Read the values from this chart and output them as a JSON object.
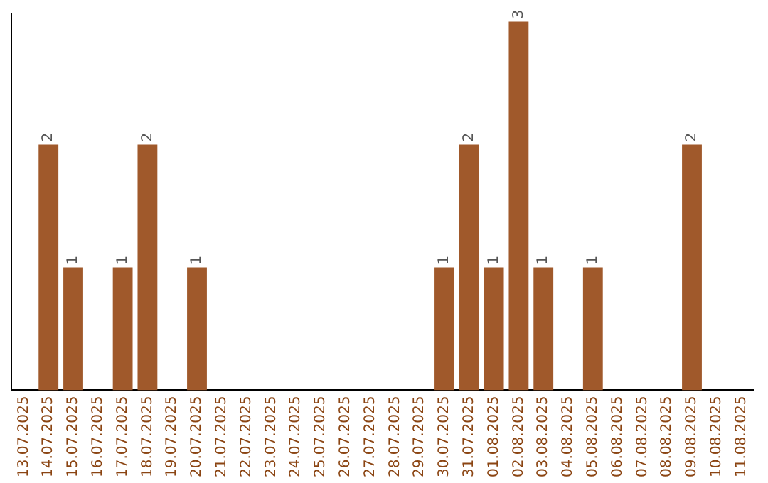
{
  "chart_data": {
    "type": "bar",
    "color": "#a0592b",
    "categories": [
      "13.07.2025",
      "14.07.2025",
      "15.07.2025",
      "16.07.2025",
      "17.07.2025",
      "18.07.2025",
      "19.07.2025",
      "20.07.2025",
      "21.07.2025",
      "22.07.2025",
      "23.07.2025",
      "24.07.2025",
      "25.07.2025",
      "26.07.2025",
      "27.07.2025",
      "28.07.2025",
      "29.07.2025",
      "30.07.2025",
      "31.07.2025",
      "01.08.2025",
      "02.08.2025",
      "03.08.2025",
      "04.08.2025",
      "05.08.2025",
      "06.08.2025",
      "07.08.2025",
      "08.08.2025",
      "09.08.2025",
      "10.08.2025",
      "11.08.2025"
    ],
    "values": [
      0,
      2,
      1,
      0,
      1,
      2,
      0,
      1,
      0,
      0,
      0,
      0,
      0,
      0,
      0,
      0,
      0,
      1,
      2,
      1,
      3,
      1,
      0,
      1,
      0,
      0,
      0,
      2,
      0,
      0
    ],
    "value_labels": [
      null,
      "2",
      "1",
      null,
      "1",
      "2",
      null,
      "1",
      null,
      null,
      null,
      null,
      null,
      null,
      null,
      null,
      null,
      "1",
      "2",
      "1",
      "3",
      "1",
      null,
      "1",
      null,
      null,
      null,
      "2",
      null,
      null
    ],
    "grid": false,
    "legend": false,
    "tick_labels": "x"
  }
}
